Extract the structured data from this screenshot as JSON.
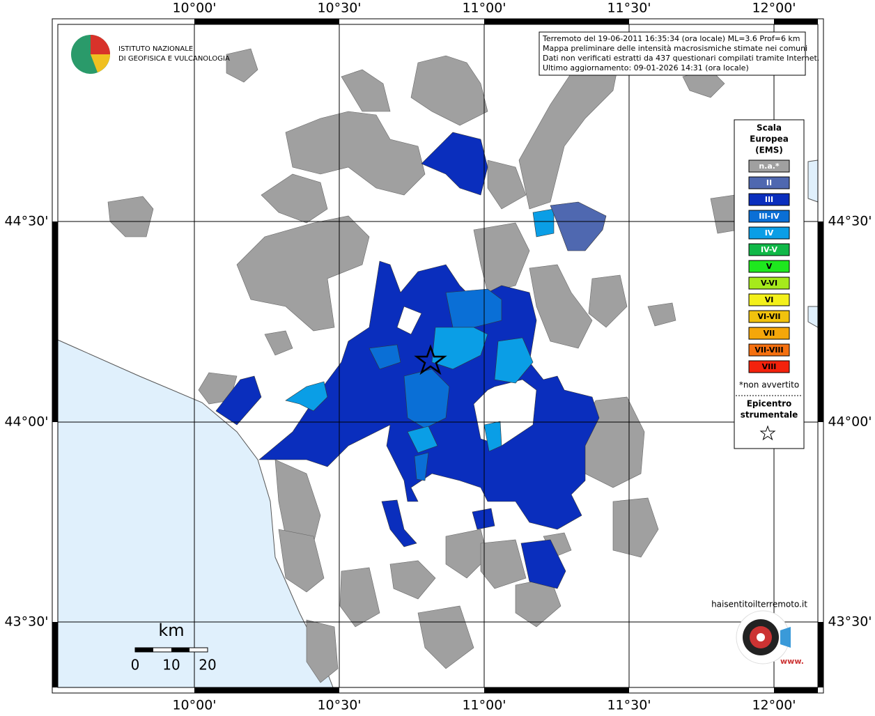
{
  "map": {
    "lon_labels": [
      "10°00'",
      "10°30'",
      "11°00'",
      "11°30'",
      "12°00'"
    ],
    "lat_labels": [
      "44°30'",
      "44°00'",
      "43°30'"
    ],
    "institute_logo": [
      "ISTITUTO NAZIONALE",
      "DI GEOFISICA E VULCANOLOGIA"
    ],
    "info_box": [
      "Terremoto del 19-06-2011 16:35:34 (ora locale) ML=3.6 Prof=6 km",
      "Mappa preliminare delle intensità macrosismiche stimate nei comuni",
      "Dati non verificati estratti da 437 questionari compilati tramite Internet.",
      "Ultimo aggiornamento: 09-01-2026 14:31 (ora locale)"
    ],
    "legend": {
      "title": [
        "Scala",
        "Europea",
        "(EMS)"
      ],
      "items": [
        {
          "label": "n.a.*",
          "color": "#a0a0a0"
        },
        {
          "label": "II",
          "color": "#4f68b0"
        },
        {
          "label": "III",
          "color": "#0a2ebd"
        },
        {
          "label": "III-IV",
          "color": "#0a6fd6"
        },
        {
          "label": "IV",
          "color": "#0a9ee6"
        },
        {
          "label": "IV-V",
          "color": "#10b848"
        },
        {
          "label": "V",
          "color": "#1ee81e"
        },
        {
          "label": "V-VI",
          "color": "#a6ea1c"
        },
        {
          "label": "VI",
          "color": "#f3f01a"
        },
        {
          "label": "VI-VII",
          "color": "#f1c20e"
        },
        {
          "label": "VII",
          "color": "#f5a70a"
        },
        {
          "label": "VII-VIII",
          "color": "#f57010"
        },
        {
          "label": "VIII",
          "color": "#f3220c"
        }
      ],
      "note": "*non avvertito",
      "epicenter": [
        "Epicentro",
        "strumentale"
      ]
    },
    "scale_bar": {
      "unit": "km",
      "labels": [
        "0",
        "10",
        "20"
      ]
    },
    "web_logo": [
      "haisentitoilterremoto.it",
      "www."
    ]
  }
}
